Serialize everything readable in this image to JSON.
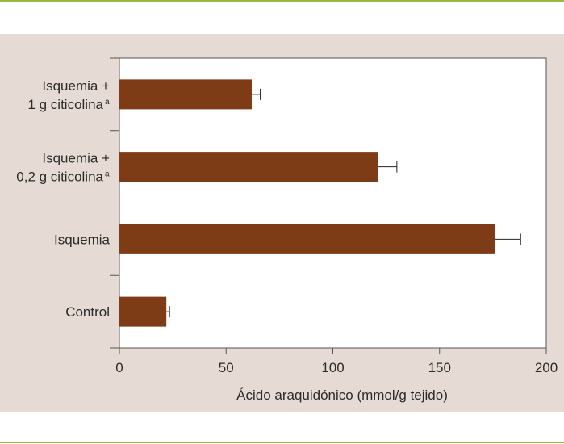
{
  "colors": {
    "bar": "#7e3c16",
    "panel": "#e6dbd4",
    "plot_bg": "#ffffff",
    "rule": "#9bb83a",
    "axis": "#555555"
  },
  "chart_data": {
    "type": "bar",
    "orientation": "horizontal",
    "categories": [
      [
        "Isquemia +",
        "1 g citicolina",
        "a"
      ],
      [
        "Isquemia +",
        "0,2 g citicolina",
        "a"
      ],
      [
        "Isquemia"
      ],
      [
        "Control"
      ]
    ],
    "values": [
      62,
      121,
      176,
      22
    ],
    "errors": [
      4,
      9,
      12,
      1.5
    ],
    "xlabel": "Ácido araquidónico (mmol/g tejido)",
    "ylabel": "",
    "xlim": [
      0,
      200
    ],
    "xticks": [
      "0",
      "50",
      "100",
      "150",
      "200"
    ],
    "grid": false
  }
}
